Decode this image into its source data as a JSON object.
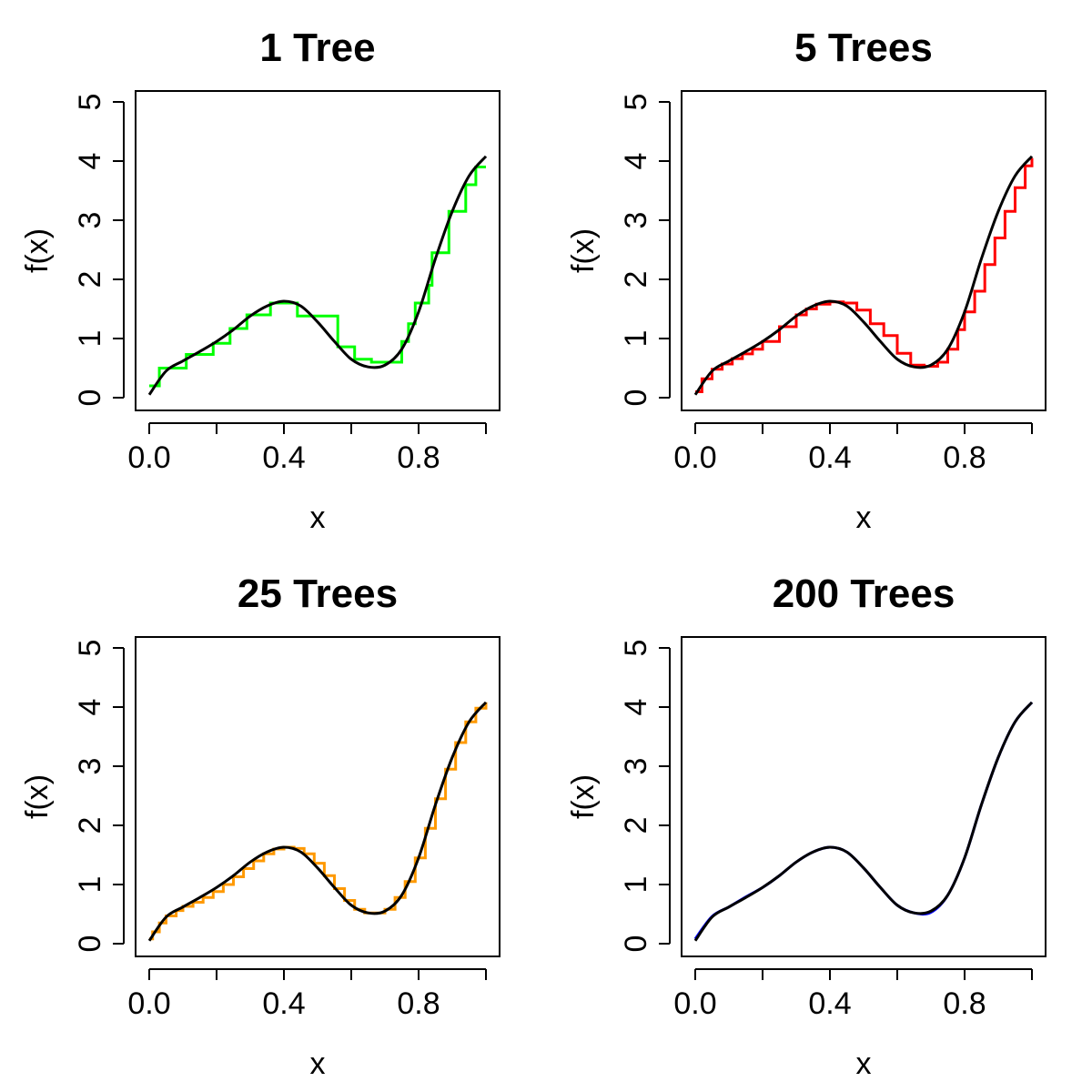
{
  "chart_data": [
    {
      "type": "line",
      "title": "1 Tree",
      "xlabel": "x",
      "ylabel": "f(x)",
      "xlim": [
        0,
        1
      ],
      "ylim": [
        0,
        5
      ],
      "xticks": [
        0,
        0.2,
        0.4,
        0.6,
        0.8,
        1.0
      ],
      "xtick_labels": [
        "0.0",
        "",
        "0.4",
        "",
        "0.8",
        ""
      ],
      "yticks": [
        0,
        1,
        2,
        3,
        4,
        5
      ],
      "ytick_labels": [
        "0",
        "1",
        "2",
        "3",
        "4",
        "5"
      ],
      "grid": false,
      "series": [
        {
          "role": "true_function",
          "color": "#000000",
          "shape": "smooth",
          "x": [
            0,
            0.05,
            0.1,
            0.15,
            0.2,
            0.25,
            0.3,
            0.35,
            0.4,
            0.45,
            0.5,
            0.55,
            0.6,
            0.65,
            0.7,
            0.75,
            0.8,
            0.85,
            0.9,
            0.95,
            1.0
          ],
          "y": [
            0.05,
            0.45,
            0.62,
            0.78,
            0.95,
            1.15,
            1.38,
            1.55,
            1.63,
            1.55,
            1.28,
            0.95,
            0.65,
            0.52,
            0.55,
            0.82,
            1.45,
            2.35,
            3.15,
            3.75,
            4.08
          ]
        },
        {
          "role": "fit",
          "color": "#00ff00",
          "shape": "step",
          "x": [
            0,
            0.03,
            0.11,
            0.19,
            0.24,
            0.29,
            0.36,
            0.44,
            0.53,
            0.56,
            0.61,
            0.66,
            0.75,
            0.77,
            0.79,
            0.83,
            0.84,
            0.89,
            0.94,
            0.97,
            1.0
          ],
          "y": [
            0.2,
            0.5,
            0.73,
            0.92,
            1.17,
            1.4,
            1.6,
            1.38,
            1.38,
            0.86,
            0.65,
            0.6,
            0.95,
            1.25,
            1.6,
            1.9,
            2.45,
            3.15,
            3.6,
            3.9,
            3.9
          ]
        }
      ]
    },
    {
      "type": "line",
      "title": "5 Trees",
      "xlabel": "x",
      "ylabel": "f(x)",
      "xlim": [
        0,
        1
      ],
      "ylim": [
        0,
        5
      ],
      "xticks": [
        0,
        0.2,
        0.4,
        0.6,
        0.8,
        1.0
      ],
      "xtick_labels": [
        "0.0",
        "",
        "0.4",
        "",
        "0.8",
        ""
      ],
      "yticks": [
        0,
        1,
        2,
        3,
        4,
        5
      ],
      "ytick_labels": [
        "0",
        "1",
        "2",
        "3",
        "4",
        "5"
      ],
      "grid": false,
      "series": [
        {
          "role": "true_function",
          "color": "#000000",
          "shape": "smooth",
          "x": [
            0,
            0.05,
            0.1,
            0.15,
            0.2,
            0.25,
            0.3,
            0.35,
            0.4,
            0.45,
            0.5,
            0.55,
            0.6,
            0.65,
            0.7,
            0.75,
            0.8,
            0.85,
            0.9,
            0.95,
            1.0
          ],
          "y": [
            0.05,
            0.45,
            0.62,
            0.78,
            0.95,
            1.15,
            1.38,
            1.55,
            1.63,
            1.55,
            1.28,
            0.95,
            0.65,
            0.52,
            0.55,
            0.82,
            1.45,
            2.35,
            3.15,
            3.75,
            4.08
          ]
        },
        {
          "role": "fit",
          "color": "#ff0000",
          "shape": "step",
          "x": [
            0,
            0.02,
            0.05,
            0.08,
            0.11,
            0.14,
            0.17,
            0.2,
            0.25,
            0.3,
            0.33,
            0.36,
            0.4,
            0.44,
            0.48,
            0.52,
            0.56,
            0.6,
            0.64,
            0.68,
            0.72,
            0.75,
            0.78,
            0.8,
            0.83,
            0.86,
            0.89,
            0.92,
            0.95,
            0.98,
            1.0
          ],
          "y": [
            0.1,
            0.32,
            0.48,
            0.57,
            0.66,
            0.74,
            0.82,
            0.95,
            1.2,
            1.4,
            1.5,
            1.58,
            1.62,
            1.6,
            1.48,
            1.25,
            1.05,
            0.75,
            0.55,
            0.53,
            0.6,
            0.82,
            1.15,
            1.45,
            1.8,
            2.25,
            2.7,
            3.15,
            3.55,
            3.92,
            4.05
          ]
        }
      ]
    },
    {
      "type": "line",
      "title": "25 Trees",
      "xlabel": "x",
      "ylabel": "f(x)",
      "xlim": [
        0,
        1
      ],
      "ylim": [
        0,
        5
      ],
      "xticks": [
        0,
        0.2,
        0.4,
        0.6,
        0.8,
        1.0
      ],
      "xtick_labels": [
        "0.0",
        "",
        "0.4",
        "",
        "0.8",
        ""
      ],
      "yticks": [
        0,
        1,
        2,
        3,
        4,
        5
      ],
      "ytick_labels": [
        "0",
        "1",
        "2",
        "3",
        "4",
        "5"
      ],
      "grid": false,
      "series": [
        {
          "role": "true_function",
          "color": "#000000",
          "shape": "smooth",
          "x": [
            0,
            0.05,
            0.1,
            0.15,
            0.2,
            0.25,
            0.3,
            0.35,
            0.4,
            0.45,
            0.5,
            0.55,
            0.6,
            0.65,
            0.7,
            0.75,
            0.8,
            0.85,
            0.9,
            0.95,
            1.0
          ],
          "y": [
            0.05,
            0.45,
            0.62,
            0.78,
            0.95,
            1.15,
            1.38,
            1.55,
            1.63,
            1.55,
            1.28,
            0.95,
            0.65,
            0.52,
            0.55,
            0.82,
            1.45,
            2.35,
            3.15,
            3.75,
            4.08
          ]
        },
        {
          "role": "fit",
          "color": "#ff9900",
          "shape": "step",
          "x": [
            0,
            0.01,
            0.03,
            0.05,
            0.08,
            0.1,
            0.13,
            0.16,
            0.19,
            0.22,
            0.25,
            0.28,
            0.31,
            0.34,
            0.37,
            0.4,
            0.43,
            0.46,
            0.49,
            0.52,
            0.55,
            0.58,
            0.61,
            0.64,
            0.67,
            0.7,
            0.73,
            0.76,
            0.79,
            0.82,
            0.85,
            0.88,
            0.91,
            0.94,
            0.97,
            1.0
          ],
          "y": [
            0.08,
            0.2,
            0.35,
            0.47,
            0.56,
            0.63,
            0.7,
            0.78,
            0.88,
            1.0,
            1.13,
            1.27,
            1.4,
            1.52,
            1.6,
            1.63,
            1.61,
            1.52,
            1.36,
            1.15,
            0.93,
            0.73,
            0.58,
            0.52,
            0.52,
            0.58,
            0.78,
            1.05,
            1.45,
            1.95,
            2.45,
            2.95,
            3.4,
            3.75,
            3.98,
            4.08
          ]
        }
      ]
    },
    {
      "type": "line",
      "title": "200 Trees",
      "xlabel": "x",
      "ylabel": "f(x)",
      "xlim": [
        0,
        1
      ],
      "ylim": [
        0,
        5
      ],
      "xticks": [
        0,
        0.2,
        0.4,
        0.6,
        0.8,
        1.0
      ],
      "xtick_labels": [
        "0.0",
        "",
        "0.4",
        "",
        "0.8",
        ""
      ],
      "yticks": [
        0,
        1,
        2,
        3,
        4,
        5
      ],
      "ytick_labels": [
        "0",
        "1",
        "2",
        "3",
        "4",
        "5"
      ],
      "grid": false,
      "series": [
        {
          "role": "true_function",
          "color": "#000000",
          "shape": "smooth",
          "x": [
            0,
            0.05,
            0.1,
            0.15,
            0.2,
            0.25,
            0.3,
            0.35,
            0.4,
            0.45,
            0.5,
            0.55,
            0.6,
            0.65,
            0.7,
            0.75,
            0.8,
            0.85,
            0.9,
            0.95,
            1.0
          ],
          "y": [
            0.05,
            0.45,
            0.62,
            0.78,
            0.95,
            1.15,
            1.38,
            1.55,
            1.63,
            1.55,
            1.28,
            0.95,
            0.65,
            0.52,
            0.55,
            0.82,
            1.45,
            2.35,
            3.15,
            3.75,
            4.08
          ]
        },
        {
          "role": "fit",
          "color": "#0000ff",
          "shape": "smooth",
          "x": [
            0,
            0.05,
            0.1,
            0.15,
            0.2,
            0.25,
            0.3,
            0.35,
            0.4,
            0.45,
            0.5,
            0.55,
            0.6,
            0.65,
            0.7,
            0.75,
            0.8,
            0.85,
            0.9,
            0.95,
            1.0
          ],
          "y": [
            0.08,
            0.46,
            0.62,
            0.79,
            0.95,
            1.15,
            1.38,
            1.55,
            1.63,
            1.55,
            1.28,
            0.95,
            0.65,
            0.52,
            0.53,
            0.82,
            1.45,
            2.35,
            3.15,
            3.75,
            4.08
          ]
        }
      ]
    }
  ]
}
